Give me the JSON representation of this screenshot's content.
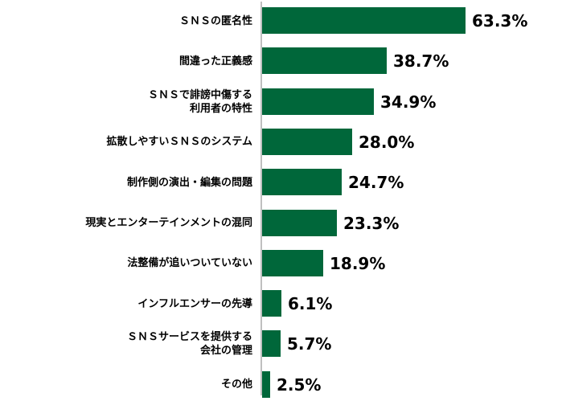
{
  "chart_data": {
    "type": "bar",
    "orientation": "horizontal",
    "title": "",
    "xlabel": "",
    "ylabel": "",
    "xlim": [
      0,
      100
    ],
    "grid": false,
    "legend": null,
    "bar_color": "#00673a",
    "axis_color": "#c0c0c0",
    "categories": [
      "ＳＮＳの匿名性",
      "間違った正義感",
      "ＳＮＳで誹謗中傷する\n利用者の特性",
      "拡散しやすいＳＮＳのシステム",
      "制作側の演出・編集の問題",
      "現実とエンターテインメントの混同",
      "法整備が追いついていない",
      "インフルエンサーの先導",
      "ＳＮＳサービスを提供する\n会社の管理",
      "その他"
    ],
    "values": [
      63.3,
      38.7,
      34.9,
      28.0,
      24.7,
      23.3,
      18.9,
      6.1,
      5.7,
      2.5
    ],
    "value_labels": [
      "63.3%",
      "38.7%",
      "34.9%",
      "28.0%",
      "24.7%",
      "23.3%",
      "18.9%",
      "6.1%",
      "5.7%",
      "2.5%"
    ]
  },
  "rows": [
    {
      "line1": "ＳＮＳの匿名性",
      "line2": "",
      "value": "63.3%"
    },
    {
      "line1": "間違った正義感",
      "line2": "",
      "value": "38.7%"
    },
    {
      "line1": "ＳＮＳで誹謗中傷する",
      "line2": "利用者の特性",
      "value": "34.9%"
    },
    {
      "line1": "拡散しやすいＳＮＳのシステム",
      "line2": "",
      "value": "28.0%"
    },
    {
      "line1": "制作側の演出・編集の問題",
      "line2": "",
      "value": "24.7%"
    },
    {
      "line1": "現実とエンターテインメントの混同",
      "line2": "",
      "value": "23.3%"
    },
    {
      "line1": "法整備が追いついていない",
      "line2": "",
      "value": "18.9%"
    },
    {
      "line1": "インフルエンサーの先導",
      "line2": "",
      "value": "6.1%"
    },
    {
      "line1": "ＳＮＳサービスを提供する",
      "line2": "会社の管理",
      "value": "5.7%"
    },
    {
      "line1": "その他",
      "line2": "",
      "value": "2.5%"
    }
  ]
}
